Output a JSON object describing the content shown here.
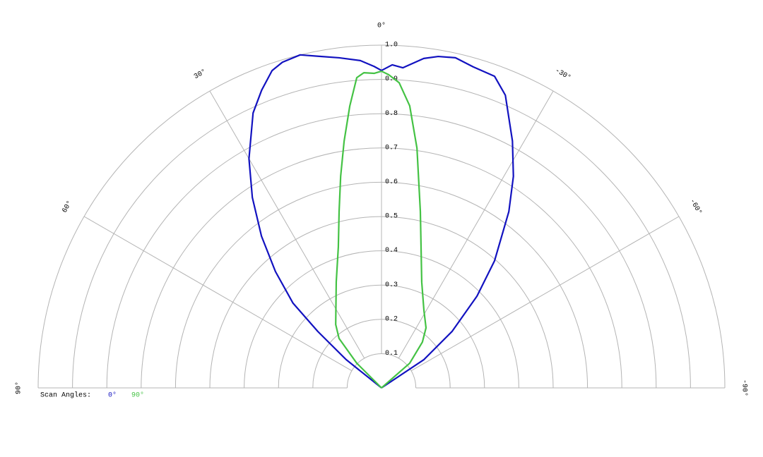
{
  "chart_data": {
    "type": "polar",
    "legend_title": "Scan Angles:",
    "rlim": [
      0,
      1
    ],
    "rticks": [
      0.1,
      0.2,
      0.3,
      0.4,
      0.5,
      0.6,
      0.7,
      0.8,
      0.9,
      {
        "value": 1,
        "label": "1.0"
      }
    ],
    "thetalim": [
      90,
      -90
    ],
    "thetaticks": [
      {
        "value": 90,
        "label": "90°"
      },
      {
        "value": 60,
        "label": "60°"
      },
      {
        "value": 30,
        "label": "30°"
      },
      {
        "value": 0,
        "label": "0°"
      },
      {
        "value": -30,
        "label": "-30°"
      },
      {
        "value": -60,
        "label": "-60°"
      },
      {
        "value": -90,
        "label": "-90°"
      }
    ],
    "grid": true,
    "series": [
      {
        "name": "0°",
        "color": "#1212c0",
        "x": [
          90,
          51.3,
          48.4,
          46.2,
          42.3,
          38.3,
          34.1,
          30.0,
          25.0,
          21.9,
          19.0,
          16.9,
          13.7,
          10.8,
          7.3,
          3.7,
          1.3,
          0,
          -1.9,
          -3.8,
          -7.3,
          -9.7,
          -12.6,
          -15.9,
          -19.9,
          -22.9,
          -27.9,
          -31.9,
          -35.8,
          -41.6,
          -46.1,
          -51.3,
          -56.3,
          -90
        ],
        "values": [
          0,
          0.132,
          0.248,
          0.357,
          0.459,
          0.564,
          0.671,
          0.772,
          0.885,
          0.936,
          0.979,
          0.993,
          1.0,
          0.985,
          0.971,
          0.957,
          0.938,
          0.926,
          0.943,
          0.936,
          0.969,
          0.981,
          0.987,
          0.974,
          0.967,
          0.927,
          0.815,
          0.727,
          0.634,
          0.496,
          0.386,
          0.263,
          0.148,
          0
        ]
      },
      {
        "name": "90°",
        "color": "#44c244",
        "x": [
          90,
          45.0,
          40.6,
          35.8,
          23.1,
          17.0,
          13.5,
          10.9,
          8.6,
          6.4,
          4.55,
          3.2,
          1.3,
          0,
          -1.3,
          -3.3,
          -5.7,
          -8.4,
          -12.4,
          -20.8,
          -28.6,
          -36.5,
          -41.7,
          -48.8,
          -90
        ],
        "values": [
          0,
          0.102,
          0.19,
          0.228,
          0.336,
          0.43,
          0.529,
          0.629,
          0.728,
          0.828,
          0.908,
          0.921,
          0.918,
          0.924,
          0.914,
          0.892,
          0.827,
          0.707,
          0.527,
          0.33,
          0.258,
          0.218,
          0.179,
          0.109,
          0
        ]
      }
    ]
  }
}
